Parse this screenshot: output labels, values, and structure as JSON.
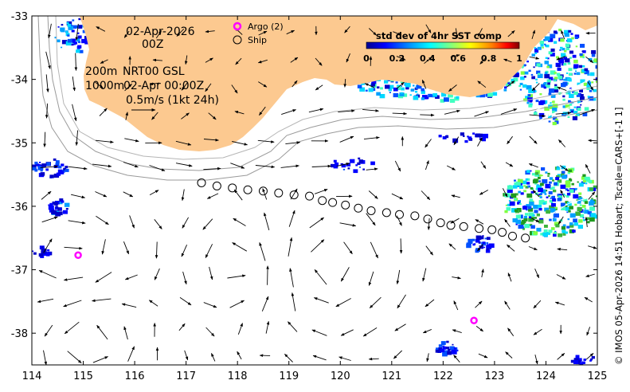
{
  "map": {
    "date_line1": "02-Apr-2026",
    "date_line2": "00Z",
    "depth_200": "200m",
    "depth_1000": "1000m",
    "product": "NRT00 GSL",
    "timestamp": "02-Apr 00:00Z",
    "scale_label": "0.5m/s (1kt 24h)",
    "credit": "© IMOS 05-Apr-2026 14:51 Hobart; Tscale=CARS+[-1 1]"
  },
  "legend": {
    "argo_label": "Argo (2)",
    "ship_label": "Ship",
    "argo_color": "#ff00ff",
    "ship_color": "#000000"
  },
  "colorbar": {
    "title": "std dev of 4hr SST comp",
    "ticks": [
      "0",
      "0.2",
      "0.4",
      "0.6",
      "0.8",
      "1"
    ]
  },
  "axes": {
    "x_ticks": [
      "114",
      "115",
      "116",
      "117",
      "118",
      "119",
      "120",
      "121",
      "122",
      "123",
      "124",
      "125"
    ],
    "y_ticks": [
      "-33",
      "-34",
      "-35",
      "-36",
      "-37",
      "-38"
    ]
  },
  "colors": {
    "land": "#fcc990",
    "ocean": "#ffffff",
    "scale_low": "#00008f",
    "scale_high": "#800000"
  },
  "chart_data": {
    "type": "map",
    "xlim": [
      114,
      125
    ],
    "ylim": [
      -38.5,
      -33
    ],
    "argo_floats": [
      {
        "lon": 114.9,
        "lat": -36.77
      },
      {
        "lon": 122.6,
        "lat": -37.8
      }
    ],
    "ship_track": [
      [
        117.3,
        -35.63
      ],
      [
        117.6,
        -35.68
      ],
      [
        117.9,
        -35.71
      ],
      [
        118.2,
        -35.74
      ],
      [
        118.5,
        -35.76
      ],
      [
        118.8,
        -35.79
      ],
      [
        119.1,
        -35.82
      ],
      [
        119.4,
        -35.84
      ],
      [
        119.65,
        -35.91
      ],
      [
        119.85,
        -35.94
      ],
      [
        120.1,
        -35.98
      ],
      [
        120.35,
        -36.03
      ],
      [
        120.6,
        -36.07
      ],
      [
        120.9,
        -36.1
      ],
      [
        121.15,
        -36.13
      ],
      [
        121.45,
        -36.15
      ],
      [
        121.7,
        -36.2
      ],
      [
        121.95,
        -36.26
      ],
      [
        122.15,
        -36.3
      ],
      [
        122.4,
        -36.32
      ],
      [
        122.7,
        -36.35
      ],
      [
        122.95,
        -36.37
      ],
      [
        123.15,
        -36.41
      ],
      [
        123.35,
        -36.47
      ],
      [
        123.6,
        -36.5
      ]
    ]
  }
}
